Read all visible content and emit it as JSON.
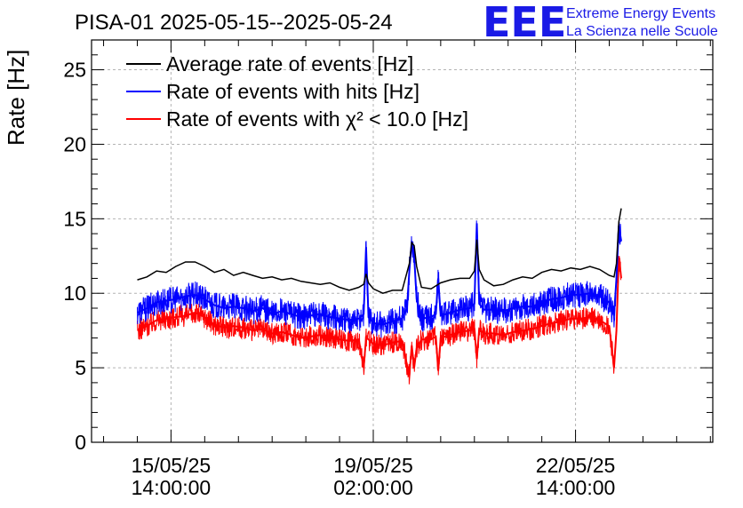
{
  "header": {
    "title": "PISA-01 2025-05-15--2025-05-24",
    "logo_text": "EEE",
    "logo_line1": "Extreme Energy Events",
    "logo_line2": "La Scienza nelle Scuole"
  },
  "chart_data": {
    "type": "line",
    "ylabel": "Rate [Hz]",
    "ylim": [
      0,
      27
    ],
    "yticks": [
      0,
      5,
      10,
      15,
      20,
      25
    ],
    "x_unit": "hours since 2025-05-15 00:00",
    "xlim": [
      -19,
      239
    ],
    "xtick_labels": [
      {
        "hours": 14,
        "date": "15/05/25",
        "time": "14:00:00"
      },
      {
        "hours": 98,
        "date": "19/05/25",
        "time": "02:00:00"
      },
      {
        "hours": 182,
        "date": "22/05/25",
        "time": "14:00:00"
      }
    ],
    "grid": true,
    "legend_position": "top-left",
    "series": [
      {
        "name": "Average rate of events [Hz]",
        "color": "#000000",
        "band": 0,
        "points": [
          [
            0,
            10.9
          ],
          [
            4,
            11.1
          ],
          [
            8,
            11.5
          ],
          [
            12,
            11.4
          ],
          [
            16,
            11.8
          ],
          [
            20,
            12.1
          ],
          [
            24,
            12.1
          ],
          [
            28,
            11.8
          ],
          [
            32,
            11.4
          ],
          [
            36,
            11.6
          ],
          [
            40,
            11.2
          ],
          [
            44,
            11.4
          ],
          [
            48,
            11.2
          ],
          [
            52,
            11.0
          ],
          [
            56,
            11.1
          ],
          [
            60,
            10.9
          ],
          [
            64,
            11.0
          ],
          [
            68,
            10.8
          ],
          [
            72,
            10.7
          ],
          [
            76,
            10.6
          ],
          [
            80,
            10.7
          ],
          [
            84,
            10.4
          ],
          [
            88,
            10.2
          ],
          [
            92,
            10.4
          ],
          [
            94,
            10.6
          ],
          [
            95,
            11.3
          ],
          [
            96,
            10.7
          ],
          [
            98,
            10.3
          ],
          [
            102,
            10.0
          ],
          [
            106,
            10.2
          ],
          [
            110,
            10.2
          ],
          [
            113,
            12.0
          ],
          [
            114,
            13.4
          ],
          [
            115,
            13.2
          ],
          [
            116,
            11.8
          ],
          [
            118,
            10.4
          ],
          [
            122,
            10.3
          ],
          [
            126,
            10.7
          ],
          [
            130,
            10.9
          ],
          [
            134,
            11.0
          ],
          [
            138,
            11.0
          ],
          [
            140,
            11.5
          ],
          [
            141,
            13.6
          ],
          [
            142,
            11.6
          ],
          [
            144,
            10.9
          ],
          [
            148,
            10.5
          ],
          [
            152,
            10.6
          ],
          [
            156,
            10.9
          ],
          [
            160,
            11.1
          ],
          [
            164,
            11.0
          ],
          [
            168,
            11.4
          ],
          [
            172,
            11.6
          ],
          [
            176,
            11.5
          ],
          [
            180,
            11.7
          ],
          [
            184,
            11.6
          ],
          [
            188,
            11.8
          ],
          [
            192,
            11.6
          ],
          [
            196,
            11.2
          ],
          [
            198,
            11.1
          ],
          [
            199,
            12.0
          ],
          [
            200,
            14.8
          ],
          [
            201,
            15.7
          ]
        ]
      },
      {
        "name": "Rate of events with hits [Hz]",
        "color": "#0000ff",
        "band": 0.9,
        "points": [
          [
            0,
            8.7
          ],
          [
            4,
            9.0
          ],
          [
            8,
            9.4
          ],
          [
            12,
            9.5
          ],
          [
            16,
            9.6
          ],
          [
            20,
            9.8
          ],
          [
            24,
            9.9
          ],
          [
            28,
            9.6
          ],
          [
            32,
            9.2
          ],
          [
            36,
            9.0
          ],
          [
            40,
            9.1
          ],
          [
            44,
            9.0
          ],
          [
            48,
            8.8
          ],
          [
            52,
            9.0
          ],
          [
            56,
            8.6
          ],
          [
            60,
            8.8
          ],
          [
            64,
            8.6
          ],
          [
            68,
            8.4
          ],
          [
            72,
            8.5
          ],
          [
            76,
            8.6
          ],
          [
            80,
            8.4
          ],
          [
            84,
            8.3
          ],
          [
            88,
            8.2
          ],
          [
            92,
            8.3
          ],
          [
            94,
            8.6
          ],
          [
            95,
            13.1
          ],
          [
            96,
            8.4
          ],
          [
            98,
            8.0
          ],
          [
            102,
            7.9
          ],
          [
            106,
            8.1
          ],
          [
            110,
            8.3
          ],
          [
            112,
            9.0
          ],
          [
            113,
            11.5
          ],
          [
            114,
            13.5
          ],
          [
            115,
            12.5
          ],
          [
            116,
            9.6
          ],
          [
            118,
            8.3
          ],
          [
            122,
            8.4
          ],
          [
            124,
            8.6
          ],
          [
            125,
            11.0
          ],
          [
            126,
            8.5
          ],
          [
            130,
            8.7
          ],
          [
            134,
            8.9
          ],
          [
            138,
            9.0
          ],
          [
            140,
            9.3
          ],
          [
            141,
            14.7
          ],
          [
            142,
            9.3
          ],
          [
            144,
            8.9
          ],
          [
            148,
            8.9
          ],
          [
            152,
            8.8
          ],
          [
            156,
            9.0
          ],
          [
            160,
            9.1
          ],
          [
            164,
            9.1
          ],
          [
            168,
            9.4
          ],
          [
            172,
            9.6
          ],
          [
            176,
            9.7
          ],
          [
            180,
            9.9
          ],
          [
            184,
            9.9
          ],
          [
            188,
            10.0
          ],
          [
            192,
            9.8
          ],
          [
            196,
            9.4
          ],
          [
            198,
            8.5
          ],
          [
            199,
            11.0
          ],
          [
            200,
            14.5
          ],
          [
            201,
            13.5
          ]
        ]
      },
      {
        "name": "Rate of events with χ² < 10.0 [Hz]",
        "color": "#ff0000",
        "band": 0.75,
        "points": [
          [
            0,
            7.5
          ],
          [
            4,
            7.8
          ],
          [
            8,
            8.2
          ],
          [
            12,
            8.3
          ],
          [
            16,
            8.4
          ],
          [
            20,
            8.5
          ],
          [
            24,
            8.7
          ],
          [
            28,
            8.4
          ],
          [
            32,
            7.9
          ],
          [
            36,
            7.7
          ],
          [
            40,
            7.8
          ],
          [
            44,
            7.7
          ],
          [
            48,
            7.5
          ],
          [
            52,
            7.6
          ],
          [
            56,
            7.3
          ],
          [
            60,
            7.4
          ],
          [
            64,
            7.2
          ],
          [
            68,
            7.0
          ],
          [
            72,
            7.1
          ],
          [
            76,
            7.2
          ],
          [
            80,
            7.0
          ],
          [
            84,
            6.9
          ],
          [
            88,
            6.8
          ],
          [
            92,
            6.9
          ],
          [
            94,
            5.0
          ],
          [
            95,
            7.0
          ],
          [
            96,
            6.9
          ],
          [
            98,
            6.6
          ],
          [
            102,
            6.5
          ],
          [
            106,
            6.7
          ],
          [
            110,
            6.8
          ],
          [
            112,
            5.2
          ],
          [
            113,
            4.5
          ],
          [
            114,
            6.5
          ],
          [
            115,
            5.0
          ],
          [
            116,
            6.3
          ],
          [
            118,
            6.9
          ],
          [
            122,
            6.9
          ],
          [
            124,
            7.1
          ],
          [
            125,
            4.8
          ],
          [
            126,
            7.0
          ],
          [
            130,
            7.2
          ],
          [
            134,
            7.4
          ],
          [
            138,
            7.5
          ],
          [
            140,
            7.6
          ],
          [
            141,
            5.6
          ],
          [
            142,
            7.6
          ],
          [
            144,
            7.3
          ],
          [
            148,
            7.3
          ],
          [
            152,
            7.2
          ],
          [
            156,
            7.4
          ],
          [
            160,
            7.5
          ],
          [
            164,
            7.6
          ],
          [
            168,
            7.8
          ],
          [
            172,
            8.0
          ],
          [
            176,
            8.1
          ],
          [
            180,
            8.3
          ],
          [
            184,
            8.3
          ],
          [
            188,
            8.4
          ],
          [
            192,
            8.2
          ],
          [
            196,
            7.8
          ],
          [
            198,
            5.0
          ],
          [
            199,
            7.5
          ],
          [
            200,
            12.5
          ],
          [
            201,
            11.0
          ]
        ]
      }
    ]
  }
}
